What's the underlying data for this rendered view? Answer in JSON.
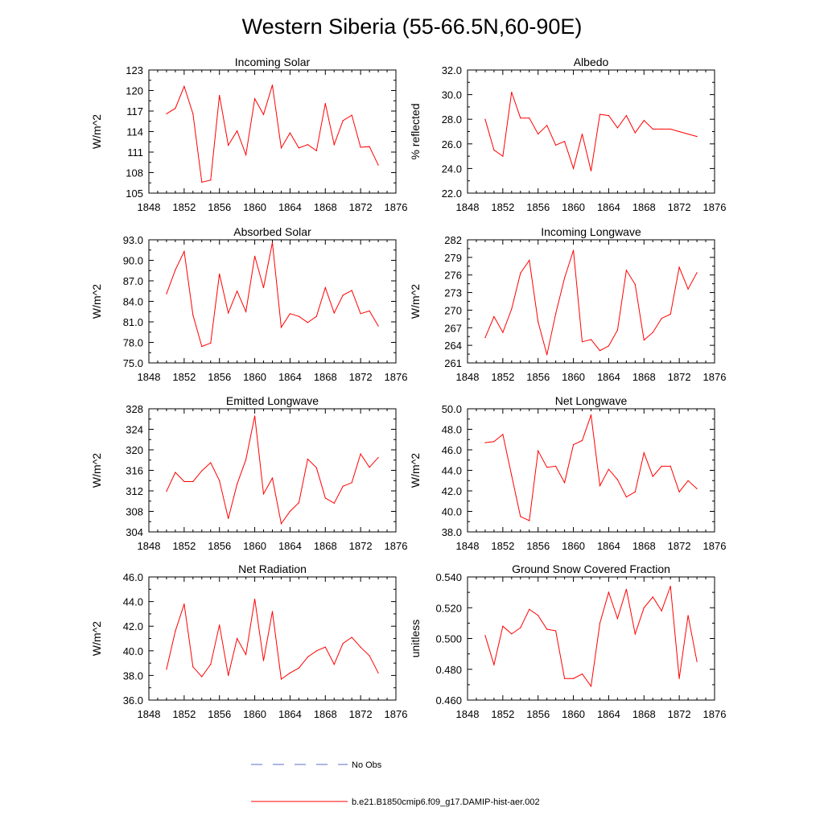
{
  "title": "Western Siberia (55-66.5N,60-90E)",
  "legend": [
    {
      "label": "No Obs",
      "color": "#5a6ec8",
      "style": "dashed"
    },
    {
      "label": "b.e21.B1850cmip6.f09_g17.DAMIP-hist-aer.002",
      "color": "#ff0000",
      "style": "solid"
    }
  ],
  "line_color": "#ff0000",
  "chart_data": [
    {
      "type": "line",
      "title": "Incoming Solar",
      "ylabel": "W/m^2",
      "xlim": [
        1848,
        1876
      ],
      "ylim": [
        105,
        123
      ],
      "xticks": [
        "1848",
        "1852",
        "1856",
        "1860",
        "1864",
        "1868",
        "1872",
        "1876"
      ],
      "yticks": [
        "105",
        "108",
        "111",
        "114",
        "117",
        "120",
        "123"
      ],
      "x": [
        1850,
        1851,
        1852,
        1853,
        1854,
        1855,
        1856,
        1857,
        1858,
        1859,
        1860,
        1861,
        1862,
        1863,
        1864,
        1865,
        1866,
        1867,
        1868,
        1869,
        1870,
        1871,
        1872,
        1873,
        1874
      ],
      "values": [
        116.6,
        117.4,
        120.6,
        116.6,
        106.6,
        106.9,
        119.3,
        112.0,
        114.1,
        110.6,
        118.8,
        116.5,
        120.8,
        111.6,
        113.8,
        111.6,
        112.1,
        111.2,
        118.1,
        112.1,
        115.6,
        116.4,
        111.7,
        111.8,
        109.1
      ]
    },
    {
      "type": "line",
      "title": "Albedo",
      "ylabel": "% reflected",
      "xlim": [
        1848,
        1876
      ],
      "ylim": [
        22.0,
        32.0
      ],
      "xticks": [
        "1848",
        "1852",
        "1856",
        "1860",
        "1864",
        "1868",
        "1872",
        "1876"
      ],
      "yticks": [
        "22.0",
        "24.0",
        "26.0",
        "28.0",
        "30.0",
        "32.0"
      ],
      "x": [
        1850,
        1851,
        1852,
        1853,
        1854,
        1855,
        1856,
        1857,
        1858,
        1859,
        1860,
        1861,
        1862,
        1863,
        1864,
        1865,
        1866,
        1867,
        1868,
        1869,
        1870,
        1871,
        1872,
        1873,
        1874
      ],
      "values": [
        28.0,
        25.5,
        25.0,
        30.2,
        28.1,
        28.1,
        26.8,
        27.5,
        25.9,
        26.2,
        24.0,
        26.8,
        23.8,
        28.4,
        28.3,
        27.3,
        28.3,
        26.9,
        27.9,
        27.2,
        27.2,
        27.2,
        27.0,
        26.8,
        26.6
      ]
    },
    {
      "type": "line",
      "title": "Absorbed Solar",
      "ylabel": "W/m^2",
      "xlim": [
        1848,
        1876
      ],
      "ylim": [
        75.0,
        93.0
      ],
      "xticks": [
        "1848",
        "1852",
        "1856",
        "1860",
        "1864",
        "1868",
        "1872",
        "1876"
      ],
      "yticks": [
        "75.0",
        "78.0",
        "81.0",
        "84.0",
        "87.0",
        "90.0",
        "93.0"
      ],
      "x": [
        1850,
        1851,
        1852,
        1853,
        1854,
        1855,
        1856,
        1857,
        1858,
        1859,
        1860,
        1861,
        1862,
        1863,
        1864,
        1865,
        1866,
        1867,
        1868,
        1869,
        1870,
        1871,
        1872,
        1873,
        1874
      ],
      "values": [
        85.1,
        88.6,
        91.3,
        82.0,
        77.4,
        77.9,
        88.0,
        82.3,
        85.5,
        82.5,
        90.6,
        86.0,
        92.6,
        80.2,
        82.2,
        81.8,
        80.9,
        81.8,
        86.0,
        82.3,
        84.9,
        85.6,
        82.2,
        82.6,
        80.4
      ]
    },
    {
      "type": "line",
      "title": "Incoming Longwave",
      "ylabel": "W/m^2",
      "xlim": [
        1848,
        1876
      ],
      "ylim": [
        261,
        282
      ],
      "xticks": [
        "1848",
        "1852",
        "1856",
        "1860",
        "1864",
        "1868",
        "1872",
        "1876"
      ],
      "yticks": [
        "261",
        "264",
        "267",
        "270",
        "273",
        "276",
        "279",
        "282"
      ],
      "x": [
        1850,
        1851,
        1852,
        1853,
        1854,
        1855,
        1856,
        1857,
        1858,
        1859,
        1860,
        1861,
        1862,
        1863,
        1864,
        1865,
        1866,
        1867,
        1868,
        1869,
        1870,
        1871,
        1872,
        1873,
        1874
      ],
      "values": [
        265.3,
        268.9,
        266.2,
        270.2,
        276.3,
        278.5,
        268.0,
        262.4,
        269.4,
        275.5,
        280.2,
        264.6,
        265.0,
        263.1,
        263.9,
        266.6,
        276.8,
        274.4,
        264.9,
        266.2,
        268.6,
        269.3,
        277.3,
        273.6,
        276.4
      ]
    },
    {
      "type": "line",
      "title": "Emitted Longwave",
      "ylabel": "W/m^2",
      "xlim": [
        1848,
        1876
      ],
      "ylim": [
        304,
        328
      ],
      "xticks": [
        "1848",
        "1852",
        "1856",
        "1860",
        "1864",
        "1868",
        "1872",
        "1876"
      ],
      "yticks": [
        "304",
        "308",
        "312",
        "316",
        "320",
        "324",
        "328"
      ],
      "x": [
        1850,
        1851,
        1852,
        1853,
        1854,
        1855,
        1856,
        1857,
        1858,
        1859,
        1860,
        1861,
        1862,
        1863,
        1864,
        1865,
        1866,
        1867,
        1868,
        1869,
        1870,
        1871,
        1872,
        1873,
        1874
      ],
      "values": [
        311.9,
        315.6,
        313.8,
        313.8,
        315.9,
        317.5,
        314.0,
        306.6,
        313.3,
        318.1,
        326.6,
        311.4,
        314.5,
        305.6,
        308.0,
        309.7,
        318.2,
        316.5,
        310.6,
        309.6,
        312.9,
        313.6,
        319.2,
        316.6,
        318.5
      ]
    },
    {
      "type": "line",
      "title": "Net Longwave",
      "ylabel": "W/m^2",
      "xlim": [
        1848,
        1876
      ],
      "ylim": [
        38.0,
        50.0
      ],
      "xticks": [
        "1848",
        "1852",
        "1856",
        "1860",
        "1864",
        "1868",
        "1872",
        "1876"
      ],
      "yticks": [
        "38.0",
        "40.0",
        "42.0",
        "44.0",
        "46.0",
        "48.0",
        "50.0"
      ],
      "x": [
        1850,
        1851,
        1852,
        1853,
        1854,
        1855,
        1856,
        1857,
        1858,
        1859,
        1860,
        1861,
        1862,
        1863,
        1864,
        1865,
        1866,
        1867,
        1868,
        1869,
        1870,
        1871,
        1872,
        1873,
        1874
      ],
      "values": [
        46.7,
        46.8,
        47.5,
        43.5,
        39.5,
        39.1,
        45.9,
        44.3,
        44.4,
        42.8,
        46.5,
        46.9,
        49.4,
        42.5,
        44.1,
        43.1,
        41.4,
        41.9,
        45.7,
        43.4,
        44.4,
        44.4,
        41.9,
        43.0,
        42.2
      ]
    },
    {
      "type": "line",
      "title": "Net Radiation",
      "ylabel": "W/m^2",
      "xlim": [
        1848,
        1876
      ],
      "ylim": [
        36.0,
        46.0
      ],
      "xticks": [
        "1848",
        "1852",
        "1856",
        "1860",
        "1864",
        "1868",
        "1872",
        "1876"
      ],
      "yticks": [
        "36.0",
        "38.0",
        "40.0",
        "42.0",
        "44.0",
        "46.0"
      ],
      "x": [
        1850,
        1851,
        1852,
        1853,
        1854,
        1855,
        1856,
        1857,
        1858,
        1859,
        1860,
        1861,
        1862,
        1863,
        1864,
        1865,
        1866,
        1867,
        1868,
        1869,
        1870,
        1871,
        1872,
        1873,
        1874
      ],
      "values": [
        38.5,
        41.6,
        43.8,
        38.7,
        37.9,
        38.9,
        42.1,
        38.0,
        41.0,
        39.7,
        44.2,
        39.2,
        43.2,
        37.7,
        38.2,
        38.6,
        39.5,
        40.0,
        40.3,
        38.9,
        40.6,
        41.1,
        40.3,
        39.6,
        38.2
      ]
    },
    {
      "type": "line",
      "title": "Ground Snow Covered Fraction",
      "ylabel": "unitless",
      "xlim": [
        1848,
        1876
      ],
      "ylim": [
        0.46,
        0.54
      ],
      "xticks": [
        "1848",
        "1852",
        "1856",
        "1860",
        "1864",
        "1868",
        "1872",
        "1876"
      ],
      "yticks": [
        "0.460",
        "0.480",
        "0.500",
        "0.520",
        "0.540"
      ],
      "x": [
        1850,
        1851,
        1852,
        1853,
        1854,
        1855,
        1856,
        1857,
        1858,
        1859,
        1860,
        1861,
        1862,
        1863,
        1864,
        1865,
        1866,
        1867,
        1868,
        1869,
        1870,
        1871,
        1872,
        1873,
        1874
      ],
      "values": [
        0.502,
        0.483,
        0.508,
        0.503,
        0.507,
        0.519,
        0.515,
        0.506,
        0.505,
        0.474,
        0.474,
        0.477,
        0.469,
        0.51,
        0.53,
        0.513,
        0.532,
        0.503,
        0.52,
        0.527,
        0.518,
        0.534,
        0.474,
        0.515,
        0.485
      ]
    }
  ]
}
